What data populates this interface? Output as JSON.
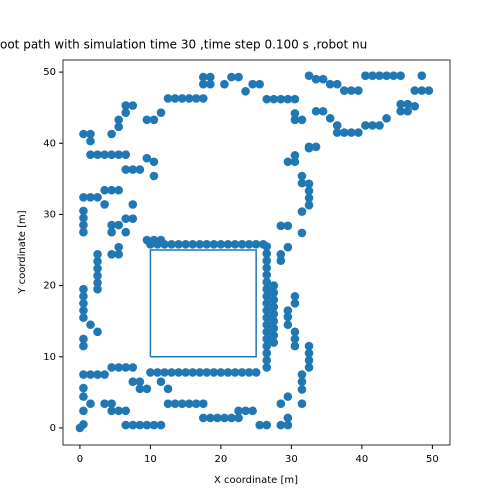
{
  "chart_data": {
    "type": "scatter",
    "title": "oot path with simulation time 30 ,time step 0.100 s ,robot nu",
    "x_label": "X coordinate [m]",
    "y_label": "Y coordinate [m]",
    "xlim": [
      -2.4,
      52.5
    ],
    "ylim": [
      -2.4,
      51.7
    ],
    "xticks": [
      0,
      10,
      20,
      30,
      40,
      50
    ],
    "yticks": [
      0,
      10,
      20,
      30,
      40,
      50
    ],
    "series": [
      {
        "type": "scatter",
        "color": "#1f77b4",
        "x": [
          0,
          0.5,
          0.5,
          0.5,
          0.5,
          1.5,
          0.5,
          1.5,
          2.5,
          3.5,
          3.5,
          4.5,
          4.5,
          5.5,
          6.5,
          6.5,
          7.5,
          8.5,
          9.5,
          10.5,
          11.5,
          4.5,
          5.5,
          6.5,
          7.5,
          7.5,
          8.5,
          8.5,
          9.5,
          10,
          11,
          12,
          13,
          14,
          15,
          16,
          17,
          18,
          19,
          20,
          21,
          22,
          23,
          24,
          25,
          11.5,
          12.5,
          12.5,
          13.5,
          14.5,
          15.5,
          16.5,
          17.5,
          17.5,
          18.5,
          19.5,
          20.5,
          21.5,
          22.5,
          22.5,
          23.5,
          24.5,
          25.5,
          26.5,
          28.5,
          29.5,
          28.5,
          29.5,
          29.5,
          31.5,
          31.5,
          31.5,
          31.5,
          32.5,
          32.5,
          32.5,
          32.5,
          30.5,
          30.5,
          30.5,
          29.5,
          26.5,
          26.5,
          26.5,
          26.5,
          26.5,
          26.5,
          26.5,
          26.5,
          26.5,
          26.5,
          26.5,
          26.5,
          26.5,
          26.5,
          26.5,
          26.5,
          26.5,
          26.5,
          27.5,
          27.5,
          27.5,
          27.5,
          27.5,
          27.5,
          27.5,
          27.5,
          27.5,
          29.5,
          29.5,
          30.5,
          30.5,
          28.5,
          28.5,
          29.5,
          28.5,
          29.5,
          31.5,
          31.5,
          32.5,
          32.5,
          32.5,
          32.5,
          31.5,
          31.5,
          29.5,
          30.5,
          30.5,
          32.5,
          30.5,
          31.5,
          30.5,
          26.5,
          27.5,
          28.5,
          29.5,
          30.5,
          24.5,
          25.5,
          23.5,
          22.5,
          21.5,
          20.5,
          18.5,
          17.5,
          17.5,
          18.5,
          12.5,
          13.5,
          14.5,
          15.5,
          16.5,
          17.5,
          11.5,
          9.5,
          10.5,
          6.5,
          7.5,
          6.5,
          5.5,
          5.5,
          4.5,
          0.5,
          1.5,
          1.5,
          1.5,
          2.5,
          3.5,
          4.5,
          5.5,
          6.5,
          6.5,
          7.5,
          8.5,
          9.5,
          10.5,
          10.5,
          0.5,
          1.5,
          2.5,
          3.5,
          4.5,
          5.5,
          3.5,
          7.5,
          7.5,
          6.5,
          5.5,
          4.5,
          4.5,
          6.5,
          0.5,
          0.5,
          0.5,
          0.5,
          0.5,
          0.5,
          0.5,
          0.5,
          0.5,
          2.5,
          2.5,
          2.5,
          2.5,
          2.5,
          2.5,
          4.5,
          5.5,
          5.5,
          0.5,
          0.5,
          1.5,
          2.5,
          10,
          11,
          12,
          13,
          14,
          15,
          16,
          17,
          18,
          19,
          20,
          21,
          22,
          23,
          24,
          25,
          26,
          9.5,
          10.5,
          11.5,
          32.5,
          33.5,
          34.5,
          35.5,
          36.5,
          37.5,
          38.5,
          39.5,
          40.5,
          41.5,
          42.5,
          43.5,
          44.5,
          45.5,
          48.5,
          47.5,
          48.5,
          49.5,
          45.5,
          46.5,
          45.5,
          46.5,
          47.5,
          33.5,
          34.5,
          35.5,
          36.5,
          36.5,
          37.5,
          38.5,
          39.5,
          40.5,
          41.5,
          42.5,
          43.5,
          32.5,
          33.5
        ],
        "values": [
          0,
          0.5,
          2.4,
          4.4,
          5.6,
          3.4,
          7.5,
          7.5,
          7.5,
          7.5,
          3.4,
          3.4,
          2.4,
          2.4,
          2.4,
          0.4,
          0.4,
          0.4,
          0.4,
          0.4,
          0.4,
          8.5,
          8.5,
          8.5,
          8.5,
          6.5,
          6.5,
          5.5,
          5.5,
          7.8,
          7.8,
          7.8,
          7.8,
          7.8,
          7.8,
          7.8,
          7.8,
          7.8,
          7.8,
          7.8,
          7.8,
          7.8,
          7.8,
          7.8,
          7.8,
          6.5,
          5.5,
          3.4,
          3.4,
          3.4,
          3.4,
          3.4,
          3.4,
          1.4,
          1.4,
          1.4,
          1.4,
          1.4,
          1.4,
          2.4,
          2.4,
          2.4,
          0.4,
          0.4,
          0.4,
          0.4,
          3.4,
          4.4,
          1.4,
          3.4,
          5.4,
          6.5,
          7.5,
          8.5,
          9.5,
          10.5,
          11.5,
          11.5,
          12.5,
          13.5,
          14.5,
          8.5,
          9.5,
          10.5,
          11.5,
          12.5,
          13.5,
          14.5,
          15.5,
          16.5,
          17.5,
          18.5,
          19.5,
          20.5,
          21.5,
          22.5,
          23.5,
          24.5,
          25.5,
          12,
          13,
          14,
          15,
          16,
          17,
          18,
          19,
          20,
          15.6,
          16.5,
          17.5,
          18.5,
          23.5,
          24.4,
          25.4,
          28.4,
          28.4,
          27.4,
          30.4,
          31.3,
          32.3,
          33.3,
          34.3,
          34.4,
          35.4,
          37.4,
          37.4,
          38.3,
          39.3,
          43.3,
          43.3,
          44.2,
          46.2,
          46.2,
          46.2,
          46.2,
          46.2,
          48.3,
          48.3,
          47.3,
          49.3,
          49.3,
          48.3,
          49.3,
          49.3,
          48.3,
          48.3,
          46.3,
          46.3,
          46.3,
          46.3,
          46.3,
          46.3,
          44.3,
          43.3,
          43.3,
          45.3,
          45.3,
          44.3,
          43.3,
          42.3,
          41.3,
          41.3,
          41.3,
          40.3,
          38.4,
          38.4,
          38.4,
          38.4,
          38.4,
          38.4,
          36.3,
          36.3,
          36.3,
          37.9,
          37.4,
          35.4,
          32.4,
          32.4,
          32.4,
          33.4,
          33.4,
          33.4,
          31.4,
          31.4,
          29.4,
          29.4,
          28.5,
          28.5,
          27.5,
          27.5,
          30.5,
          29.5,
          28.5,
          27.5,
          19.5,
          18.5,
          17.5,
          16.5,
          15.5,
          24.4,
          23.4,
          22.4,
          21.4,
          20.4,
          19.5,
          24.4,
          24.4,
          25.4,
          12.5,
          11.5,
          14.5,
          13.5,
          25.8,
          25.8,
          25.8,
          25.8,
          25.8,
          25.8,
          25.8,
          25.8,
          25.8,
          25.8,
          25.8,
          25.8,
          25.8,
          25.8,
          25.8,
          25.8,
          25.8,
          26.4,
          26.4,
          26.4,
          49.5,
          49,
          49,
          48.3,
          48.3,
          47.4,
          47.4,
          47.4,
          49.5,
          49.5,
          49.5,
          49.5,
          49.5,
          49.5,
          49.5,
          47.4,
          47.4,
          47.4,
          45.5,
          45.5,
          44.5,
          44.5,
          45.2,
          44.5,
          44.5,
          43.5,
          42.5,
          41.5,
          41.5,
          41.5,
          41.5,
          42.5,
          42.5,
          42.5,
          43.5,
          39.5,
          39.5
        ]
      },
      {
        "type": "line",
        "color": "#1f77b4",
        "x": [
          10,
          25,
          25,
          10,
          10
        ],
        "values": [
          10,
          10,
          25,
          25,
          10
        ]
      }
    ]
  }
}
